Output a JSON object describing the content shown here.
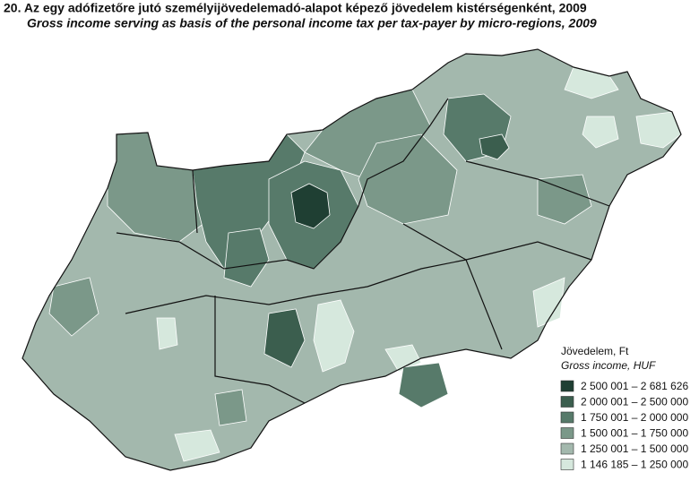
{
  "title": "20. Az egy adófizetőre jutó személyijövedelemadó-alapot képező jövedelem kistérségenként, 2009",
  "subtitle": "Gross income serving as basis of the personal income tax per tax-payer by micro-regions, 2009",
  "legend": {
    "title": "Jövedelem, Ft",
    "subtitle": "Gross income, HUF",
    "items": [
      {
        "label": "2 500 001 – 2 681 626",
        "color": "#1f3f33"
      },
      {
        "label": "2 000 001 – 2 500 000",
        "color": "#3b5e4e"
      },
      {
        "label": "1 750 001 – 2 000 000",
        "color": "#577a6a"
      },
      {
        "label": "1 500 001 – 1 750 000",
        "color": "#7b9889"
      },
      {
        "label": "1 250 001 – 1 500 000",
        "color": "#a3b8ad"
      },
      {
        "label": "1 146 185 – 1 250 000",
        "color": "#d6e8dd"
      }
    ]
  }
}
